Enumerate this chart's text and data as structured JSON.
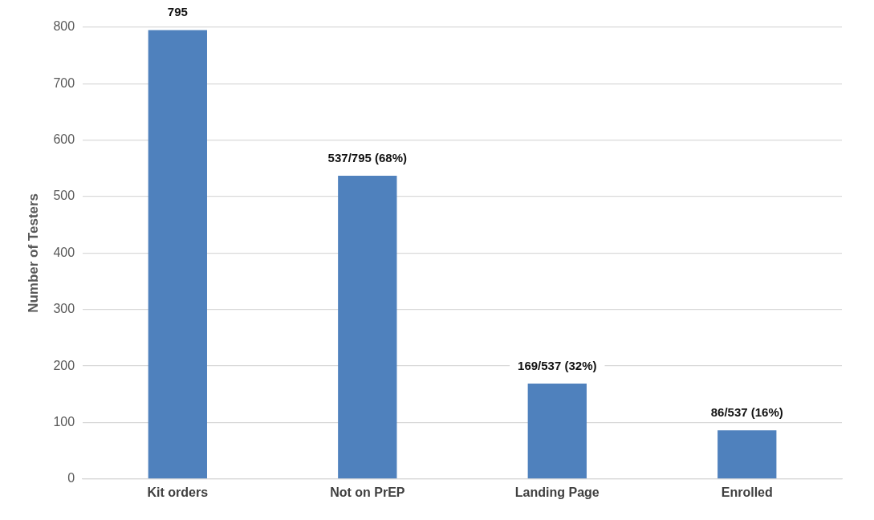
{
  "chart_data": {
    "type": "bar",
    "ylabel": "Number of Testers",
    "categories": [
      "Kit orders",
      "Not on PrEP",
      "Landing Page",
      "Enrolled"
    ],
    "values": [
      795,
      537,
      169,
      86
    ],
    "color": "#4f81bd",
    "value_labels": [
      "795",
      "537/795 (68%)",
      "169/537 (32%)",
      "86/537 (16%)"
    ],
    "ylim": [
      0,
      800
    ],
    "yticks": [
      0,
      100,
      200,
      300,
      400,
      500,
      600,
      700,
      800
    ],
    "grid": "y"
  }
}
